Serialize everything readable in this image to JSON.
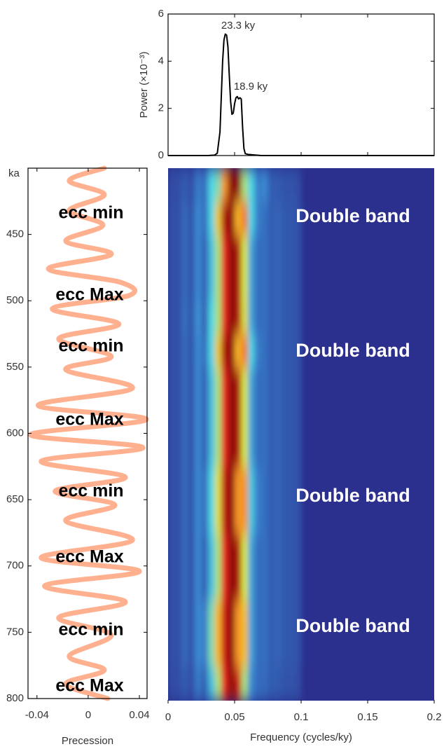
{
  "chart_data": [
    {
      "type": "line",
      "ylabel": "Power (×10⁻³)",
      "x": [
        0,
        0.03,
        0.035,
        0.037,
        0.039,
        0.04,
        0.041,
        0.042,
        0.043,
        0.044,
        0.045,
        0.046,
        0.047,
        0.048,
        0.049,
        0.05,
        0.051,
        0.052,
        0.053,
        0.054,
        0.055,
        0.056,
        0.057,
        0.058,
        0.06,
        0.07,
        0.1,
        0.15,
        0.2
      ],
      "values": [
        0,
        0,
        0.02,
        0.1,
        1.0,
        2.5,
        4.0,
        4.9,
        5.15,
        5.1,
        4.6,
        3.4,
        2.3,
        1.75,
        1.8,
        2.2,
        2.45,
        2.5,
        2.4,
        2.45,
        2.4,
        1.2,
        0.3,
        0.08,
        0.05,
        0,
        0,
        0,
        0
      ],
      "color": "#000000",
      "xlim": [
        0,
        0.2
      ],
      "xticks": [
        0,
        0.05,
        0.1,
        0.15,
        0.2
      ],
      "ylim": [
        0,
        6
      ],
      "yticks": [
        0,
        2,
        4,
        6
      ],
      "annotations": [
        "23.3 ky",
        "18.9 ky"
      ]
    },
    {
      "type": "line",
      "orientation": "vertical",
      "xlabel": "Precession",
      "ylabel": "ka",
      "y": [
        400,
        409.5,
        420,
        432,
        443,
        455,
        465,
        476,
        486,
        496,
        506,
        517.5,
        528.6,
        542,
        552,
        566,
        579,
        589.5,
        601,
        610.7,
        621,
        633,
        643.5,
        654,
        666,
        680.6,
        693.8,
        704,
        715,
        727,
        739,
        752,
        768,
        778.5,
        789,
        800
      ],
      "values": [
        0.0126,
        -0.0148,
        0.0126,
        -0.0148,
        0.0115,
        -0.0175,
        0.018,
        -0.031,
        0.025,
        0.032,
        -0.028,
        0.024,
        -0.023,
        0.018,
        -0.0175,
        0.0345,
        -0.039,
        0.0455,
        -0.045,
        0.0427,
        -0.0367,
        0.029,
        -0.0258,
        0.0208,
        -0.0175,
        0.0345,
        -0.0367,
        0.04,
        -0.034,
        0.029,
        -0.023,
        0.018,
        -0.0148,
        0.0126,
        -0.0175,
        0.0153
      ],
      "color": "#ffb08f",
      "xlim": [
        -0.047,
        0.046
      ],
      "xticks": [
        -0.04,
        0,
        0.04
      ],
      "ylim": [
        400,
        800
      ],
      "yticks": [
        450,
        500,
        550,
        600,
        650,
        700,
        750,
        800
      ],
      "y_inverted": true,
      "annotations": [
        "ecc min",
        "ecc Max",
        "ecc min",
        "ecc Max",
        "ecc min",
        "ecc Max",
        "ecc min",
        "ecc Max"
      ]
    },
    {
      "type": "heatmap",
      "xlabel": "Frequency (cycles/ky)",
      "xbins": [
        0,
        0.005,
        0.01,
        0.015,
        0.02,
        0.025,
        0.03,
        0.035,
        0.04,
        0.045,
        0.05,
        0.055,
        0.06,
        0.065,
        0.07,
        0.075,
        0.08,
        0.085,
        0.09,
        0.095,
        0.1
      ],
      "ybins": [
        400,
        425,
        450,
        475,
        500,
        525,
        550,
        575,
        600,
        625,
        650,
        675,
        700,
        725,
        750,
        775,
        800
      ],
      "values": [
        [
          0.1,
          0.1,
          0.15,
          0.1,
          0.25,
          0.2,
          0.45,
          0.5,
          0.75,
          1.0,
          1.0,
          0.55,
          0.45,
          0.25,
          0.3,
          0.15,
          0.15,
          0.12,
          0.12,
          0.1
        ],
        [
          0.12,
          0.1,
          0.2,
          0.12,
          0.3,
          0.2,
          0.45,
          0.68,
          0.95,
          1.0,
          0.72,
          0.78,
          0.45,
          0.25,
          0.22,
          0.15,
          0.18,
          0.14,
          0.14,
          0.12
        ],
        [
          0.12,
          0.1,
          0.2,
          0.12,
          0.3,
          0.15,
          0.4,
          0.55,
          0.85,
          1.0,
          0.95,
          0.6,
          0.35,
          0.2,
          0.22,
          0.15,
          0.18,
          0.14,
          0.14,
          0.12
        ],
        [
          0.12,
          0.1,
          0.2,
          0.12,
          0.3,
          0.15,
          0.4,
          0.55,
          0.85,
          1.0,
          0.95,
          0.6,
          0.35,
          0.2,
          0.22,
          0.15,
          0.18,
          0.14,
          0.14,
          0.12
        ],
        [
          0.12,
          0.1,
          0.22,
          0.12,
          0.32,
          0.15,
          0.45,
          0.55,
          0.85,
          1.0,
          0.95,
          0.62,
          0.35,
          0.2,
          0.22,
          0.15,
          0.18,
          0.14,
          0.14,
          0.12
        ],
        [
          0.12,
          0.1,
          0.2,
          0.12,
          0.3,
          0.2,
          0.45,
          0.68,
          0.95,
          1.0,
          0.72,
          0.78,
          0.45,
          0.25,
          0.22,
          0.15,
          0.18,
          0.14,
          0.14,
          0.12
        ],
        [
          0.12,
          0.1,
          0.2,
          0.12,
          0.3,
          0.15,
          0.4,
          0.55,
          0.85,
          1.0,
          0.95,
          0.6,
          0.35,
          0.2,
          0.22,
          0.15,
          0.18,
          0.14,
          0.14,
          0.12
        ],
        [
          0.12,
          0.1,
          0.2,
          0.12,
          0.3,
          0.15,
          0.4,
          0.55,
          0.85,
          1.0,
          0.95,
          0.6,
          0.35,
          0.2,
          0.22,
          0.15,
          0.18,
          0.14,
          0.14,
          0.12
        ],
        [
          0.12,
          0.1,
          0.2,
          0.12,
          0.3,
          0.15,
          0.4,
          0.55,
          0.85,
          1.0,
          0.95,
          0.6,
          0.35,
          0.2,
          0.22,
          0.15,
          0.18,
          0.14,
          0.14,
          0.12
        ],
        [
          0.12,
          0.1,
          0.2,
          0.12,
          0.3,
          0.2,
          0.45,
          0.62,
          0.92,
          1.0,
          0.75,
          0.75,
          0.42,
          0.25,
          0.22,
          0.15,
          0.18,
          0.14,
          0.14,
          0.12
        ],
        [
          0.12,
          0.1,
          0.2,
          0.12,
          0.3,
          0.2,
          0.45,
          0.62,
          0.92,
          1.0,
          0.75,
          0.75,
          0.42,
          0.25,
          0.22,
          0.15,
          0.18,
          0.14,
          0.14,
          0.12
        ],
        [
          0.12,
          0.1,
          0.2,
          0.12,
          0.3,
          0.15,
          0.4,
          0.55,
          0.85,
          1.0,
          0.95,
          0.6,
          0.35,
          0.2,
          0.22,
          0.15,
          0.18,
          0.14,
          0.14,
          0.12
        ],
        [
          0.12,
          0.1,
          0.2,
          0.12,
          0.3,
          0.15,
          0.4,
          0.55,
          0.85,
          1.0,
          0.95,
          0.6,
          0.35,
          0.2,
          0.22,
          0.15,
          0.18,
          0.14,
          0.14,
          0.12
        ],
        [
          0.12,
          0.1,
          0.2,
          0.12,
          0.3,
          0.25,
          0.5,
          0.72,
          0.9,
          1.0,
          0.75,
          0.7,
          0.35,
          0.2,
          0.22,
          0.15,
          0.18,
          0.14,
          0.14,
          0.12
        ],
        [
          0.12,
          0.1,
          0.2,
          0.12,
          0.3,
          0.25,
          0.5,
          0.72,
          0.9,
          1.0,
          0.75,
          0.7,
          0.35,
          0.2,
          0.22,
          0.15,
          0.18,
          0.14,
          0.14,
          0.12
        ],
        [
          0.1,
          0.1,
          0.15,
          0.1,
          0.25,
          0.15,
          0.4,
          0.55,
          0.85,
          1.0,
          0.9,
          0.55,
          0.3,
          0.2,
          0.2,
          0.15,
          0.15,
          0.12,
          0.12,
          0.1
        ]
      ],
      "xlim": [
        0,
        0.2
      ],
      "xticks": [
        0,
        0.05,
        0.1,
        0.15,
        0.2
      ],
      "ylim": [
        400,
        800
      ],
      "y_inverted": true,
      "annotations": [
        "Double band",
        "Double band",
        "Double band",
        "Double band"
      ]
    }
  ]
}
